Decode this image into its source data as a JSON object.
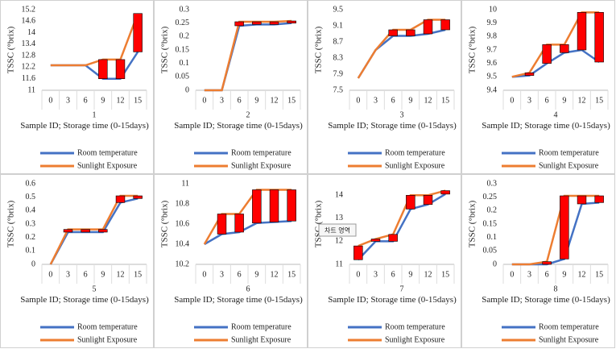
{
  "chart_data": [
    {
      "type": "line",
      "subtitle": "1",
      "x_label": "Sample ID; Storage time (0-15days)",
      "y_label": "TSSC (°brix)",
      "categories": [
        "0",
        "3",
        "6",
        "9",
        "12",
        "15"
      ],
      "ylim": [
        11,
        15.2
      ],
      "yticks": [
        11,
        11.6,
        12.2,
        12.8,
        13.4,
        14,
        14.6,
        15.2
      ],
      "grid": false,
      "updown_color": "#ff0000",
      "series": [
        {
          "name": "Room temperature",
          "color": "#4472c4",
          "values": [
            12.3,
            12.3,
            12.3,
            11.6,
            11.6,
            13.0
          ]
        },
        {
          "name": "Sunlight Exposure",
          "color": "#ed7d31",
          "values": [
            12.3,
            12.3,
            12.3,
            12.6,
            12.6,
            15.0
          ]
        }
      ]
    },
    {
      "type": "line",
      "subtitle": "2",
      "x_label": "Sample ID; Storage time (0-15days)",
      "y_label": "TSSC (°brix)",
      "categories": [
        "0",
        "3",
        "6",
        "9",
        "12",
        "15"
      ],
      "ylim": [
        0,
        0.3
      ],
      "yticks": [
        0,
        0.05,
        0.1,
        0.15,
        0.2,
        0.25,
        0.3
      ],
      "grid": false,
      "updown_color": "#ff0000",
      "series": [
        {
          "name": "Room temperature",
          "color": "#4472c4",
          "values": [
            0,
            0,
            0.24,
            0.245,
            0.245,
            0.25
          ]
        },
        {
          "name": "Sunlight Exposure",
          "color": "#ed7d31",
          "values": [
            0,
            0,
            0.255,
            0.255,
            0.255,
            0.258
          ]
        }
      ]
    },
    {
      "type": "line",
      "subtitle": "3",
      "x_label": "Sample ID; Storage time (0-15days)",
      "y_label": "TSSC (°brix)",
      "categories": [
        "0",
        "3",
        "6",
        "9",
        "12",
        "15"
      ],
      "ylim": [
        7.5,
        9.5
      ],
      "yticks": [
        7.5,
        7.9,
        8.3,
        8.7,
        9.1,
        9.5
      ],
      "grid": false,
      "updown_color": "#ff0000",
      "series": [
        {
          "name": "Room temperature",
          "color": "#4472c4",
          "values": [
            7.8,
            8.5,
            8.85,
            8.85,
            8.9,
            9.0
          ]
        },
        {
          "name": "Sunlight Exposure",
          "color": "#ed7d31",
          "values": [
            7.8,
            8.5,
            9.0,
            9.0,
            9.25,
            9.25
          ]
        }
      ]
    },
    {
      "type": "line",
      "subtitle": "4",
      "x_label": "Sample ID; Storage time (0-15days)",
      "y_label": "TSSC (°brix)",
      "categories": [
        "0",
        "3",
        "6",
        "9",
        "12",
        "15"
      ],
      "ylim": [
        9.4,
        10
      ],
      "yticks": [
        9.4,
        9.5,
        9.6,
        9.7,
        9.8,
        9.9,
        10
      ],
      "grid": false,
      "updown_color": "#ff0000",
      "series": [
        {
          "name": "Room temperature",
          "color": "#4472c4",
          "values": [
            9.5,
            9.51,
            9.6,
            9.68,
            9.7,
            9.61
          ]
        },
        {
          "name": "Sunlight Exposure",
          "color": "#ed7d31",
          "values": [
            9.5,
            9.53,
            9.74,
            9.74,
            9.98,
            9.98
          ]
        }
      ]
    },
    {
      "type": "line",
      "subtitle": "5",
      "x_label": "Sample ID; Storage time (0-15days)",
      "y_label": "TSSC (°brix)",
      "categories": [
        "0",
        "3",
        "6",
        "9",
        "12",
        "15"
      ],
      "ylim": [
        0,
        0.6
      ],
      "yticks": [
        0,
        0.1,
        0.2,
        0.3,
        0.4,
        0.5,
        0.6
      ],
      "grid": false,
      "updown_color": "#ff0000",
      "series": [
        {
          "name": "Room temperature",
          "color": "#4472c4",
          "values": [
            0,
            0.24,
            0.24,
            0.24,
            0.46,
            0.49
          ]
        },
        {
          "name": "Sunlight Exposure",
          "color": "#ed7d31",
          "values": [
            0,
            0.26,
            0.26,
            0.26,
            0.51,
            0.51
          ]
        }
      ]
    },
    {
      "type": "line",
      "subtitle": "6",
      "x_label": "Sample ID; Storage time (0-15days)",
      "y_label": "TSSC (°brix)",
      "categories": [
        "0",
        "3",
        "6",
        "9",
        "12",
        "15"
      ],
      "ylim": [
        10.2,
        11
      ],
      "yticks": [
        10.2,
        10.4,
        10.6,
        10.8,
        11
      ],
      "grid": false,
      "updown_color": "#ff0000",
      "series": [
        {
          "name": "Room temperature",
          "color": "#4472c4",
          "values": [
            10.4,
            10.5,
            10.52,
            10.61,
            10.62,
            10.63
          ]
        },
        {
          "name": "Sunlight Exposure",
          "color": "#ed7d31",
          "values": [
            10.4,
            10.7,
            10.7,
            10.94,
            10.94,
            10.94
          ]
        }
      ]
    },
    {
      "type": "line",
      "subtitle": "7",
      "x_label": "Sample ID; Storage time (0-15days)",
      "y_label": "TSSC (°brix)",
      "annotation": "차트 영역",
      "categories": [
        "0",
        "3",
        "6",
        "9",
        "12",
        "15"
      ],
      "ylim": [
        11,
        14.5
      ],
      "yticks": [
        11,
        12,
        13,
        14
      ],
      "grid": false,
      "updown_color": "#ff0000",
      "series": [
        {
          "name": "Room temperature",
          "color": "#4472c4",
          "values": [
            11.2,
            12.0,
            12.0,
            13.4,
            13.6,
            14.05
          ]
        },
        {
          "name": "Sunlight Exposure",
          "color": "#ed7d31",
          "values": [
            11.8,
            12.1,
            12.3,
            14.0,
            14.0,
            14.2
          ]
        }
      ]
    },
    {
      "type": "line",
      "subtitle": "8",
      "x_label": "Sample ID; Storage time (0-15days)",
      "y_label": "TSSC (°brix)",
      "categories": [
        "0",
        "3",
        "6",
        "9",
        "12",
        "15"
      ],
      "ylim": [
        0,
        0.3
      ],
      "yticks": [
        0,
        0.05,
        0.1,
        0.15,
        0.2,
        0.25,
        0.3
      ],
      "grid": false,
      "updown_color": "#ff0000",
      "series": [
        {
          "name": "Room temperature",
          "color": "#4472c4",
          "values": [
            0,
            0,
            0,
            0.02,
            0.225,
            0.23
          ]
        },
        {
          "name": "Sunlight Exposure",
          "color": "#ed7d31",
          "values": [
            0,
            0,
            0.01,
            0.255,
            0.255,
            0.255
          ]
        }
      ]
    }
  ]
}
